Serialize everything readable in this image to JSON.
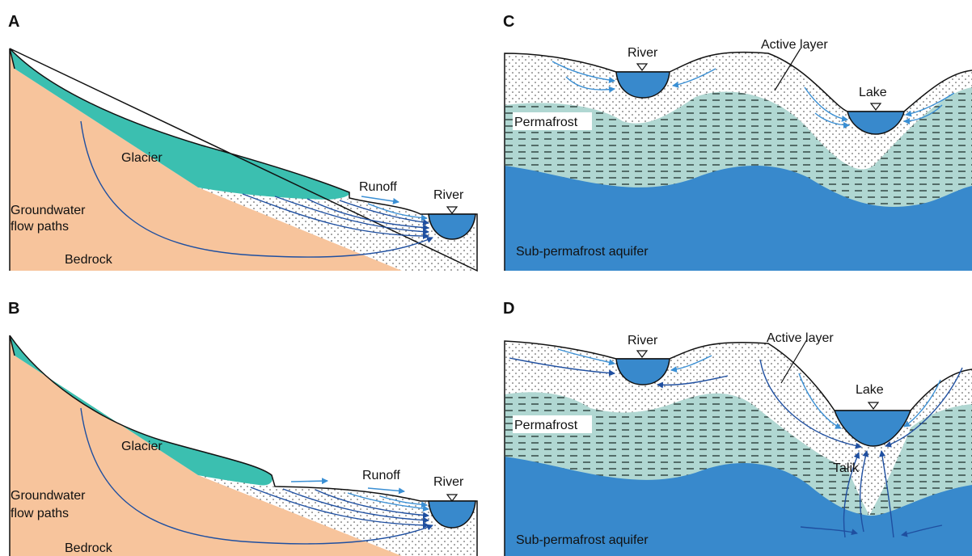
{
  "panels": {
    "a": {
      "letter": "A",
      "glacier": "Glacier",
      "runoff": "Runoff",
      "river": "River",
      "groundwater_1": "Groundwater",
      "groundwater_2": "flow paths",
      "bedrock": "Bedrock"
    },
    "b": {
      "letter": "B",
      "glacier": "Glacier",
      "runoff": "Runoff",
      "river": "River",
      "groundwater_1": "Groundwater",
      "groundwater_2": "flow paths",
      "bedrock": "Bedrock"
    },
    "c": {
      "letter": "C",
      "river": "River",
      "active_layer": "Active layer",
      "lake": "Lake",
      "permafrost": "Permafrost",
      "aquifer": "Sub-permafrost aquifer"
    },
    "d": {
      "letter": "D",
      "river": "River",
      "active_layer": "Active layer",
      "lake": "Lake",
      "permafrost": "Permafrost",
      "talik": "Talik",
      "aquifer": "Sub-permafrost aquifer"
    }
  },
  "colors": {
    "glacier": "#3bbfb0",
    "bedrock": "#f7c49c",
    "water": "#3889cc",
    "permafrost": "#b0d7d2",
    "flow_dark": "#1f4fa0",
    "flow_light": "#3a8fd4"
  }
}
